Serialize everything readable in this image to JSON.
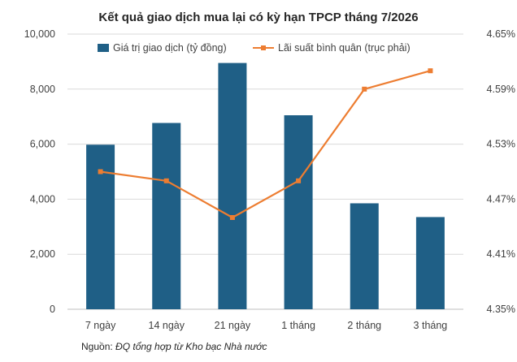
{
  "chart_data": {
    "type": "bar",
    "title": "Kết quả giao dịch mua lại có kỳ hạn TPCP tháng 7/2026",
    "categories": [
      "7 ngày",
      "14 ngày",
      "21 ngày",
      "1 tháng",
      "2 tháng",
      "3 tháng"
    ],
    "series": [
      {
        "name": "Giá trị giao dịch (tỷ đồng)",
        "type": "bar",
        "axis": "left",
        "color": "#1F5F86",
        "values": [
          5980,
          6770,
          8950,
          7050,
          3850,
          3350
        ]
      },
      {
        "name": "Lãi suất bình quân (trục phải)",
        "type": "line",
        "axis": "right",
        "color": "#ED7D31",
        "values": [
          4.5,
          4.49,
          4.45,
          4.49,
          4.59,
          4.61
        ]
      }
    ],
    "y_left": {
      "ylim": [
        0,
        10000
      ],
      "ticks": [
        0,
        2000,
        4000,
        6000,
        8000,
        10000
      ],
      "tick_labels": [
        "0",
        "2,000",
        "4,000",
        "6,000",
        "8,000",
        "10,000"
      ]
    },
    "y_right": {
      "ylim": [
        4.35,
        4.65
      ],
      "ticks": [
        4.35,
        4.41,
        4.47,
        4.53,
        4.59,
        4.65
      ],
      "tick_labels": [
        "4.35%",
        "4.41%",
        "4.47%",
        "4.53%",
        "4.59%",
        "4.65%"
      ]
    },
    "grid": true,
    "legend_position": "top"
  },
  "source": {
    "prefix": "Nguồn: ",
    "text": "ĐQ tổng hợp từ Kho bạc Nhà nước"
  }
}
